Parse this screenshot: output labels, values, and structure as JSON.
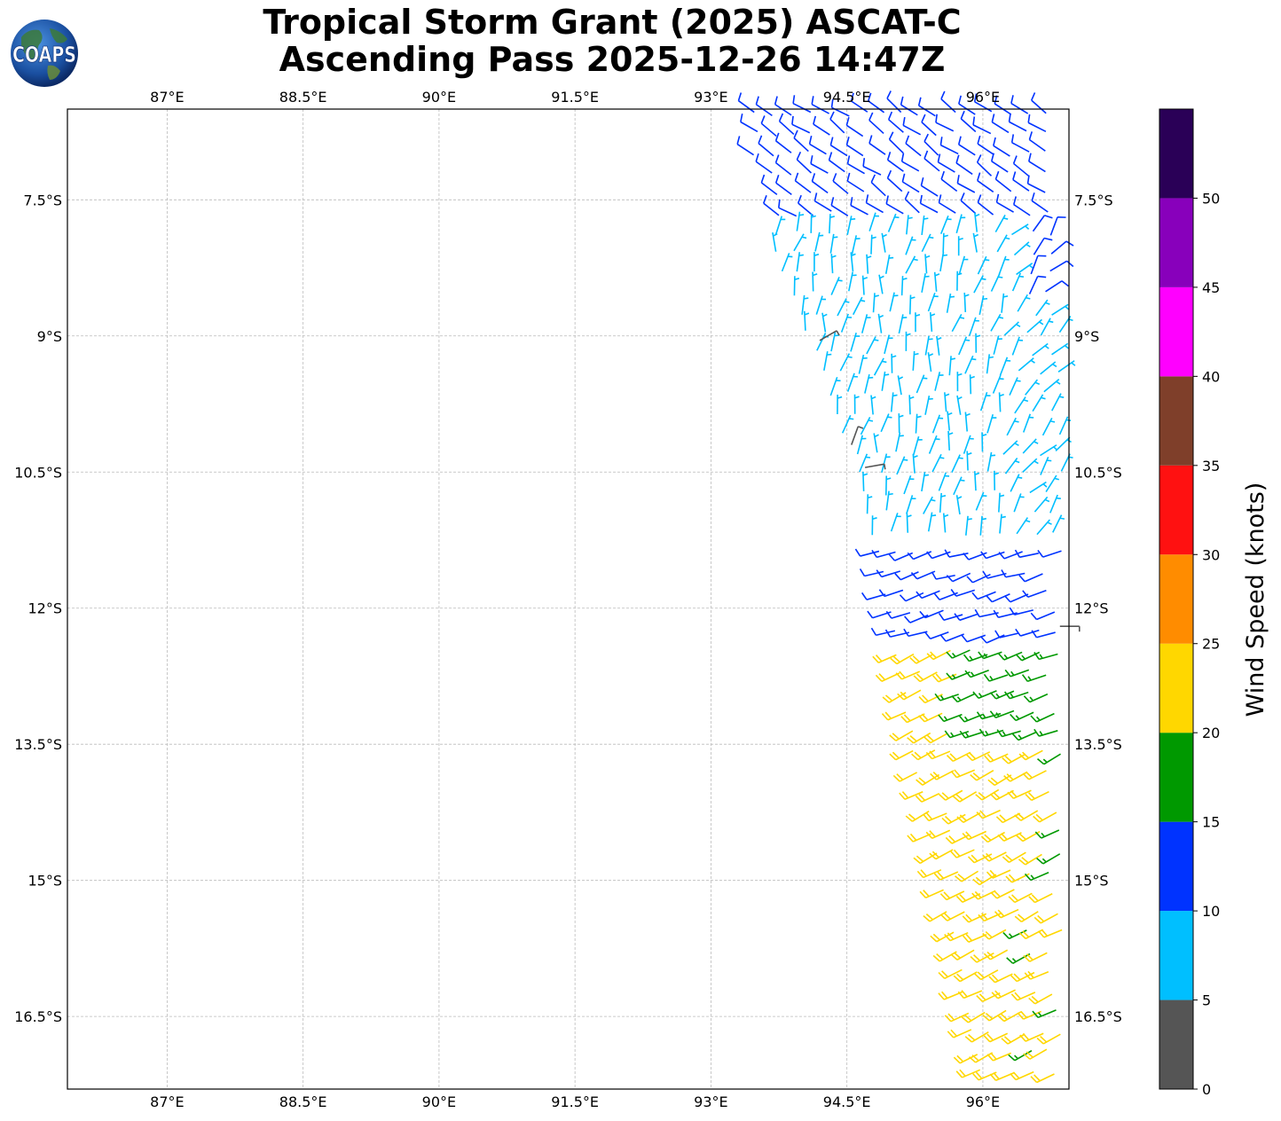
{
  "title": {
    "line1": "Tropical Storm Grant (2025) ASCAT-C",
    "line2": "Ascending Pass 2025-12-26 14:47Z"
  },
  "logo": {
    "text": "COAPS",
    "icon": "coaps-globe-logo"
  },
  "map": {
    "type": "wind-barb-map",
    "lon_range": [
      85.9,
      96.95
    ],
    "lat_range": [
      -17.3,
      -6.5
    ],
    "grid": true,
    "lon_ticks": [
      {
        "value": 87,
        "label": "87°E"
      },
      {
        "value": 88.5,
        "label": "88.5°E"
      },
      {
        "value": 90,
        "label": "90°E"
      },
      {
        "value": 91.5,
        "label": "91.5°E"
      },
      {
        "value": 93,
        "label": "93°E"
      },
      {
        "value": 94.5,
        "label": "94.5°E"
      },
      {
        "value": 96,
        "label": "96°E"
      }
    ],
    "lat_ticks": [
      {
        "value": -7.5,
        "label": "7.5°S"
      },
      {
        "value": -9,
        "label": "9°S"
      },
      {
        "value": -10.5,
        "label": "10.5°S"
      },
      {
        "value": -12,
        "label": "12°S"
      },
      {
        "value": -13.5,
        "label": "13.5°S"
      },
      {
        "value": -15,
        "label": "15°S"
      },
      {
        "value": -16.5,
        "label": "16.5°S"
      }
    ]
  },
  "colorbar": {
    "label": "Wind Speed (knots)",
    "ticks": [
      "0",
      "5",
      "10",
      "15",
      "20",
      "25",
      "30",
      "35",
      "40",
      "45",
      "50"
    ],
    "bins": [
      {
        "from": 0,
        "to": 5,
        "color": "#555555"
      },
      {
        "from": 5,
        "to": 10,
        "color": "#00bfff"
      },
      {
        "from": 10,
        "to": 15,
        "color": "#0033ff"
      },
      {
        "from": 15,
        "to": 20,
        "color": "#009900"
      },
      {
        "from": 20,
        "to": 25,
        "color": "#ffd700"
      },
      {
        "from": 25,
        "to": 30,
        "color": "#ff8c00"
      },
      {
        "from": 30,
        "to": 35,
        "color": "#ff1111"
      },
      {
        "from": 35,
        "to": 40,
        "color": "#7f3f2a"
      },
      {
        "from": 40,
        "to": 45,
        "color": "#ff00ff"
      },
      {
        "from": 45,
        "to": 50,
        "color": "#8800bb"
      },
      {
        "from": 50,
        "to": 55,
        "color": "#2a0057"
      }
    ]
  },
  "chart_data": {
    "type": "wind-barb",
    "units": "knots",
    "regions": [
      {
        "name": "northern band",
        "lat": [
          -6.5,
          -7.8
        ],
        "lon": [
          93.5,
          96.9
        ],
        "speed_kt": 12,
        "from_dir_deg": 300
      },
      {
        "name": "central band",
        "lat": [
          -7.5,
          -11.4
        ],
        "lon": [
          93.7,
          96.9
        ],
        "speed_kt": 8,
        "from_dir_deg": 10
      },
      {
        "name": "transition band",
        "lat": [
          -11.4,
          -12.4
        ],
        "lon": [
          94.8,
          96.9
        ],
        "speed_kt": 12,
        "from_dir_deg": 250
      },
      {
        "name": "green band",
        "lat": [
          -12.4,
          -13.6
        ],
        "lon": [
          95.0,
          96.9
        ],
        "speed_kt": 17,
        "from_dir_deg": 250
      },
      {
        "name": "southern band",
        "lat": [
          -12.8,
          -17.3
        ],
        "lon": [
          95.0,
          96.9
        ],
        "speed_kt": 22,
        "from_dir_deg": 240
      }
    ]
  }
}
